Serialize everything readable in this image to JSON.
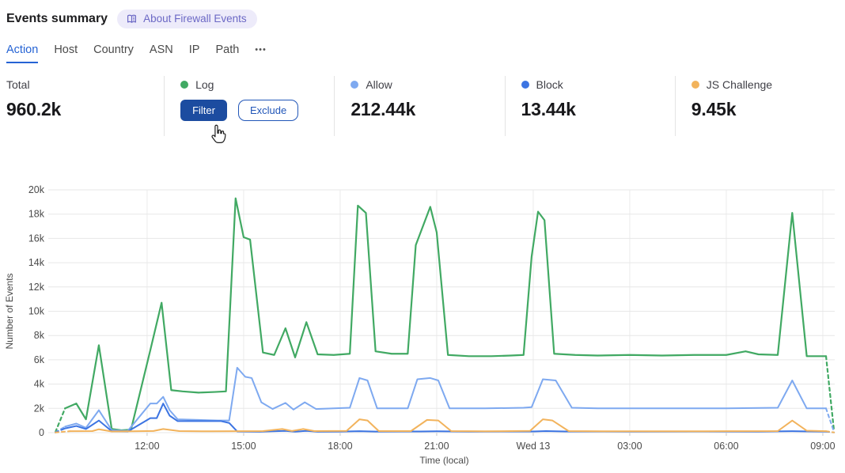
{
  "header": {
    "title": "Events summary",
    "badge_label": "About Firewall Events"
  },
  "tabs": {
    "active": "Action",
    "items": [
      {
        "label": "Action"
      },
      {
        "label": "Host"
      },
      {
        "label": "Country"
      },
      {
        "label": "ASN"
      },
      {
        "label": "IP"
      },
      {
        "label": "Path"
      }
    ],
    "overflow_glyph": "•••"
  },
  "stats": [
    {
      "label": "Total",
      "value": "960.2k"
    },
    {
      "label": "Log",
      "dot_color": "#41a963",
      "buttons": [
        {
          "label": "Filter",
          "variant": "primary"
        },
        {
          "label": "Exclude",
          "variant": "secondary"
        }
      ]
    },
    {
      "label": "Allow",
      "dot_color": "#7ea9f0",
      "value": "212.44k"
    },
    {
      "label": "Block",
      "dot_color": "#3c74e2",
      "value": "13.44k"
    },
    {
      "label": "JS Challenge",
      "dot_color": "#f2b35c",
      "value": "9.45k"
    }
  ],
  "chart_data": {
    "type": "line",
    "xlabel": "Time (local)",
    "ylabel": "Number of Events",
    "ylim": [
      0,
      20000
    ],
    "xlim_hours": [
      9.1,
      33.37
    ],
    "grid": true,
    "legend_position": "stat cards above chart",
    "edge_note": "first and last segment of each series drawn dashed (partial time buckets)",
    "y_ticks": [
      {
        "v": 0,
        "label": "0"
      },
      {
        "v": 2000,
        "label": "2k"
      },
      {
        "v": 4000,
        "label": "4k"
      },
      {
        "v": 6000,
        "label": "6k"
      },
      {
        "v": 8000,
        "label": "8k"
      },
      {
        "v": 10000,
        "label": "10k"
      },
      {
        "v": 12000,
        "label": "12k"
      },
      {
        "v": 14000,
        "label": "14k"
      },
      {
        "v": 16000,
        "label": "16k"
      },
      {
        "v": 18000,
        "label": "18k"
      },
      {
        "v": 20000,
        "label": "20k"
      }
    ],
    "x_ticks": [
      {
        "h": 12,
        "label": "12:00"
      },
      {
        "h": 15,
        "label": "15:00"
      },
      {
        "h": 18,
        "label": "18:00"
      },
      {
        "h": 21,
        "label": "21:00"
      },
      {
        "h": 24,
        "label": "Wed 13"
      },
      {
        "h": 27,
        "label": "03:00"
      },
      {
        "h": 30,
        "label": "06:00"
      },
      {
        "h": 33,
        "label": "09:00"
      }
    ],
    "series": [
      {
        "name": "Log",
        "color": "#41a963",
        "width": 2.2,
        "points": [
          [
            9.15,
            50
          ],
          [
            9.45,
            2000
          ],
          [
            9.8,
            2400
          ],
          [
            10.1,
            1100
          ],
          [
            10.5,
            7200
          ],
          [
            10.9,
            300
          ],
          [
            11.2,
            200
          ],
          [
            11.5,
            250
          ],
          [
            12.1,
            6800
          ],
          [
            12.45,
            10700
          ],
          [
            12.75,
            3500
          ],
          [
            13.1,
            3400
          ],
          [
            13.6,
            3300
          ],
          [
            14.1,
            3350
          ],
          [
            14.45,
            3400
          ],
          [
            14.75,
            19300
          ],
          [
            15.0,
            16100
          ],
          [
            15.2,
            15900
          ],
          [
            15.6,
            6600
          ],
          [
            15.95,
            6400
          ],
          [
            16.3,
            8600
          ],
          [
            16.6,
            6200
          ],
          [
            16.95,
            9100
          ],
          [
            17.3,
            6450
          ],
          [
            17.8,
            6400
          ],
          [
            18.3,
            6500
          ],
          [
            18.55,
            18700
          ],
          [
            18.8,
            18100
          ],
          [
            19.1,
            6700
          ],
          [
            19.6,
            6500
          ],
          [
            20.1,
            6500
          ],
          [
            20.35,
            15450
          ],
          [
            20.8,
            18600
          ],
          [
            21.0,
            16500
          ],
          [
            21.35,
            6400
          ],
          [
            22.0,
            6300
          ],
          [
            22.7,
            6300
          ],
          [
            23.3,
            6350
          ],
          [
            23.7,
            6400
          ],
          [
            23.95,
            14500
          ],
          [
            24.15,
            18200
          ],
          [
            24.35,
            17500
          ],
          [
            24.65,
            6500
          ],
          [
            25.3,
            6400
          ],
          [
            26.0,
            6350
          ],
          [
            27.0,
            6400
          ],
          [
            28.0,
            6350
          ],
          [
            29.0,
            6400
          ],
          [
            30.0,
            6400
          ],
          [
            30.6,
            6700
          ],
          [
            31.0,
            6450
          ],
          [
            31.6,
            6400
          ],
          [
            32.05,
            18100
          ],
          [
            32.5,
            6300
          ],
          [
            33.1,
            6300
          ],
          [
            33.35,
            100
          ]
        ]
      },
      {
        "name": "Allow",
        "color": "#7ea9f0",
        "width": 2,
        "points": [
          [
            9.15,
            30
          ],
          [
            9.45,
            500
          ],
          [
            9.8,
            750
          ],
          [
            10.1,
            400
          ],
          [
            10.5,
            1850
          ],
          [
            10.9,
            200
          ],
          [
            11.4,
            150
          ],
          [
            12.1,
            2400
          ],
          [
            12.3,
            2400
          ],
          [
            12.5,
            2950
          ],
          [
            12.7,
            1850
          ],
          [
            12.95,
            1100
          ],
          [
            13.6,
            1050
          ],
          [
            14.2,
            1000
          ],
          [
            14.55,
            1000
          ],
          [
            14.8,
            5350
          ],
          [
            15.05,
            4600
          ],
          [
            15.25,
            4500
          ],
          [
            15.55,
            2500
          ],
          [
            15.9,
            1950
          ],
          [
            16.3,
            2450
          ],
          [
            16.55,
            1900
          ],
          [
            16.9,
            2500
          ],
          [
            17.25,
            1950
          ],
          [
            17.8,
            2000
          ],
          [
            18.3,
            2050
          ],
          [
            18.6,
            4500
          ],
          [
            18.85,
            4300
          ],
          [
            19.15,
            2000
          ],
          [
            20.1,
            2000
          ],
          [
            20.4,
            4400
          ],
          [
            20.8,
            4500
          ],
          [
            21.05,
            4300
          ],
          [
            21.4,
            2000
          ],
          [
            22.5,
            2000
          ],
          [
            23.7,
            2050
          ],
          [
            23.95,
            2100
          ],
          [
            24.3,
            4400
          ],
          [
            24.7,
            4300
          ],
          [
            25.2,
            2050
          ],
          [
            26.0,
            2000
          ],
          [
            28.0,
            2000
          ],
          [
            30.0,
            2000
          ],
          [
            31.6,
            2050
          ],
          [
            32.05,
            4300
          ],
          [
            32.5,
            2000
          ],
          [
            33.1,
            2000
          ],
          [
            33.35,
            50
          ]
        ]
      },
      {
        "name": "Block",
        "color": "#3c74e2",
        "width": 2,
        "points": [
          [
            9.15,
            20
          ],
          [
            9.45,
            350
          ],
          [
            9.8,
            550
          ],
          [
            10.1,
            300
          ],
          [
            10.5,
            1000
          ],
          [
            10.9,
            120
          ],
          [
            11.4,
            100
          ],
          [
            12.1,
            1200
          ],
          [
            12.3,
            1200
          ],
          [
            12.5,
            2400
          ],
          [
            12.7,
            1400
          ],
          [
            12.95,
            950
          ],
          [
            13.6,
            950
          ],
          [
            14.3,
            950
          ],
          [
            14.55,
            800
          ],
          [
            14.8,
            100
          ],
          [
            15.5,
            80
          ],
          [
            16.3,
            150
          ],
          [
            16.6,
            80
          ],
          [
            16.95,
            150
          ],
          [
            17.3,
            80
          ],
          [
            18.0,
            90
          ],
          [
            18.6,
            120
          ],
          [
            19.1,
            90
          ],
          [
            20.5,
            100
          ],
          [
            21.0,
            110
          ],
          [
            22.0,
            90
          ],
          [
            24.0,
            100
          ],
          [
            24.4,
            130
          ],
          [
            25.0,
            100
          ],
          [
            27.0,
            90
          ],
          [
            29.0,
            100
          ],
          [
            31.0,
            90
          ],
          [
            32.05,
            120
          ],
          [
            33.1,
            90
          ],
          [
            33.35,
            20
          ]
        ]
      },
      {
        "name": "JS Challenge",
        "color": "#f2b35c",
        "width": 2,
        "points": [
          [
            9.15,
            20
          ],
          [
            9.6,
            120
          ],
          [
            10.3,
            130
          ],
          [
            10.5,
            280
          ],
          [
            10.9,
            100
          ],
          [
            11.5,
            110
          ],
          [
            12.2,
            140
          ],
          [
            12.5,
            300
          ],
          [
            13.0,
            130
          ],
          [
            14.0,
            110
          ],
          [
            14.8,
            120
          ],
          [
            15.6,
            130
          ],
          [
            16.2,
            300
          ],
          [
            16.5,
            140
          ],
          [
            16.85,
            300
          ],
          [
            17.2,
            130
          ],
          [
            18.2,
            150
          ],
          [
            18.6,
            1100
          ],
          [
            18.85,
            1000
          ],
          [
            19.2,
            130
          ],
          [
            20.2,
            130
          ],
          [
            20.7,
            1050
          ],
          [
            21.05,
            1000
          ],
          [
            21.45,
            130
          ],
          [
            22.5,
            110
          ],
          [
            23.9,
            150
          ],
          [
            24.3,
            1100
          ],
          [
            24.6,
            1000
          ],
          [
            25.1,
            130
          ],
          [
            26.5,
            110
          ],
          [
            28.0,
            110
          ],
          [
            30.0,
            120
          ],
          [
            31.6,
            130
          ],
          [
            32.05,
            1000
          ],
          [
            32.5,
            160
          ],
          [
            33.1,
            120
          ],
          [
            33.35,
            20
          ]
        ]
      }
    ]
  }
}
